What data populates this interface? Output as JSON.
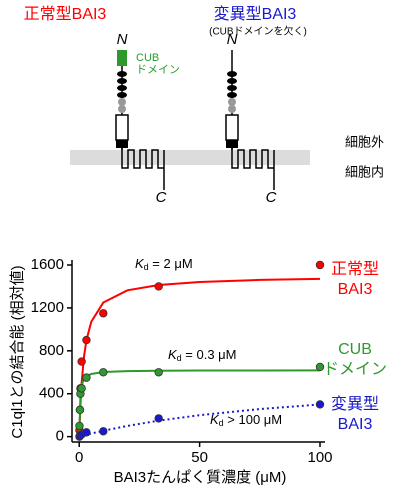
{
  "diagram": {
    "normal_title": "正常型BAI3",
    "mutant_title": "変異型BAI3",
    "mutant_note": "(CUBドメインを欠く)",
    "n_label": "N",
    "c_label": "C",
    "cub_label": [
      "CUB",
      "ドメイン"
    ],
    "extracellular": "細胞外",
    "intracellular": "細胞内"
  },
  "chart_data": {
    "type": "scatter",
    "x_label": "BAI3たんぱく質濃度 (μM)",
    "y_label": "C1ql1との結合能 (相対値)",
    "xlim": [
      -3,
      100
    ],
    "ylim": [
      -50,
      1600
    ],
    "xticks": [
      0,
      50,
      100
    ],
    "yticks": [
      0,
      400,
      800,
      1200,
      1600
    ],
    "series": [
      {
        "name": [
          "正常型",
          "BAI3"
        ],
        "color": "#ff0000",
        "x": [
          0.1,
          0.3,
          0.5,
          1,
          3,
          10,
          33,
          100
        ],
        "values": [
          60,
          250,
          450,
          700,
          900,
          1150,
          1400,
          1600
        ],
        "fit": {
          "style": "solid",
          "x": [
            0,
            0.5,
            1,
            2,
            3,
            5,
            10,
            20,
            33,
            50,
            75,
            100
          ],
          "values": [
            0,
            300,
            500,
            750,
            900,
            1071,
            1250,
            1364,
            1414,
            1442,
            1461,
            1471
          ]
        },
        "kd_label": {
          "k": "K",
          "sub": "d",
          "rest": " = 2 μM"
        }
      },
      {
        "name": [
          "CUB",
          "ドメイン"
        ],
        "color": "#2e9a2e",
        "x": [
          0.1,
          0.3,
          0.5,
          1,
          3,
          10,
          33,
          100
        ],
        "values": [
          100,
          250,
          400,
          450,
          550,
          600,
          600,
          650
        ],
        "fit": {
          "style": "solid",
          "x": [
            0,
            0.5,
            1,
            2,
            3,
            5,
            10,
            20,
            33,
            50,
            75,
            100
          ],
          "values": [
            0,
            388,
            477,
            539,
            564,
            584,
            602,
            611,
            614,
            616,
            617,
            618
          ]
        },
        "kd_label": {
          "k": "K",
          "sub": "d",
          "rest": " = 0.3 μM"
        }
      },
      {
        "name": [
          "変異型",
          "BAI3"
        ],
        "color": "#1a1acc",
        "x": [
          0.1,
          0.3,
          1,
          3,
          10,
          33,
          100
        ],
        "values": [
          0,
          10,
          20,
          40,
          50,
          170,
          300
        ],
        "fit": {
          "style": "dotted",
          "x": [
            0,
            0.5,
            1,
            2,
            3,
            5,
            10,
            20,
            33,
            50,
            75,
            100
          ],
          "values": [
            0,
            3,
            6,
            12,
            17,
            29,
            55,
            100,
            149,
            200,
            257,
            300
          ]
        },
        "kd_label": {
          "k": "K",
          "sub": "d",
          "rest": " > 100 μM"
        }
      }
    ]
  }
}
